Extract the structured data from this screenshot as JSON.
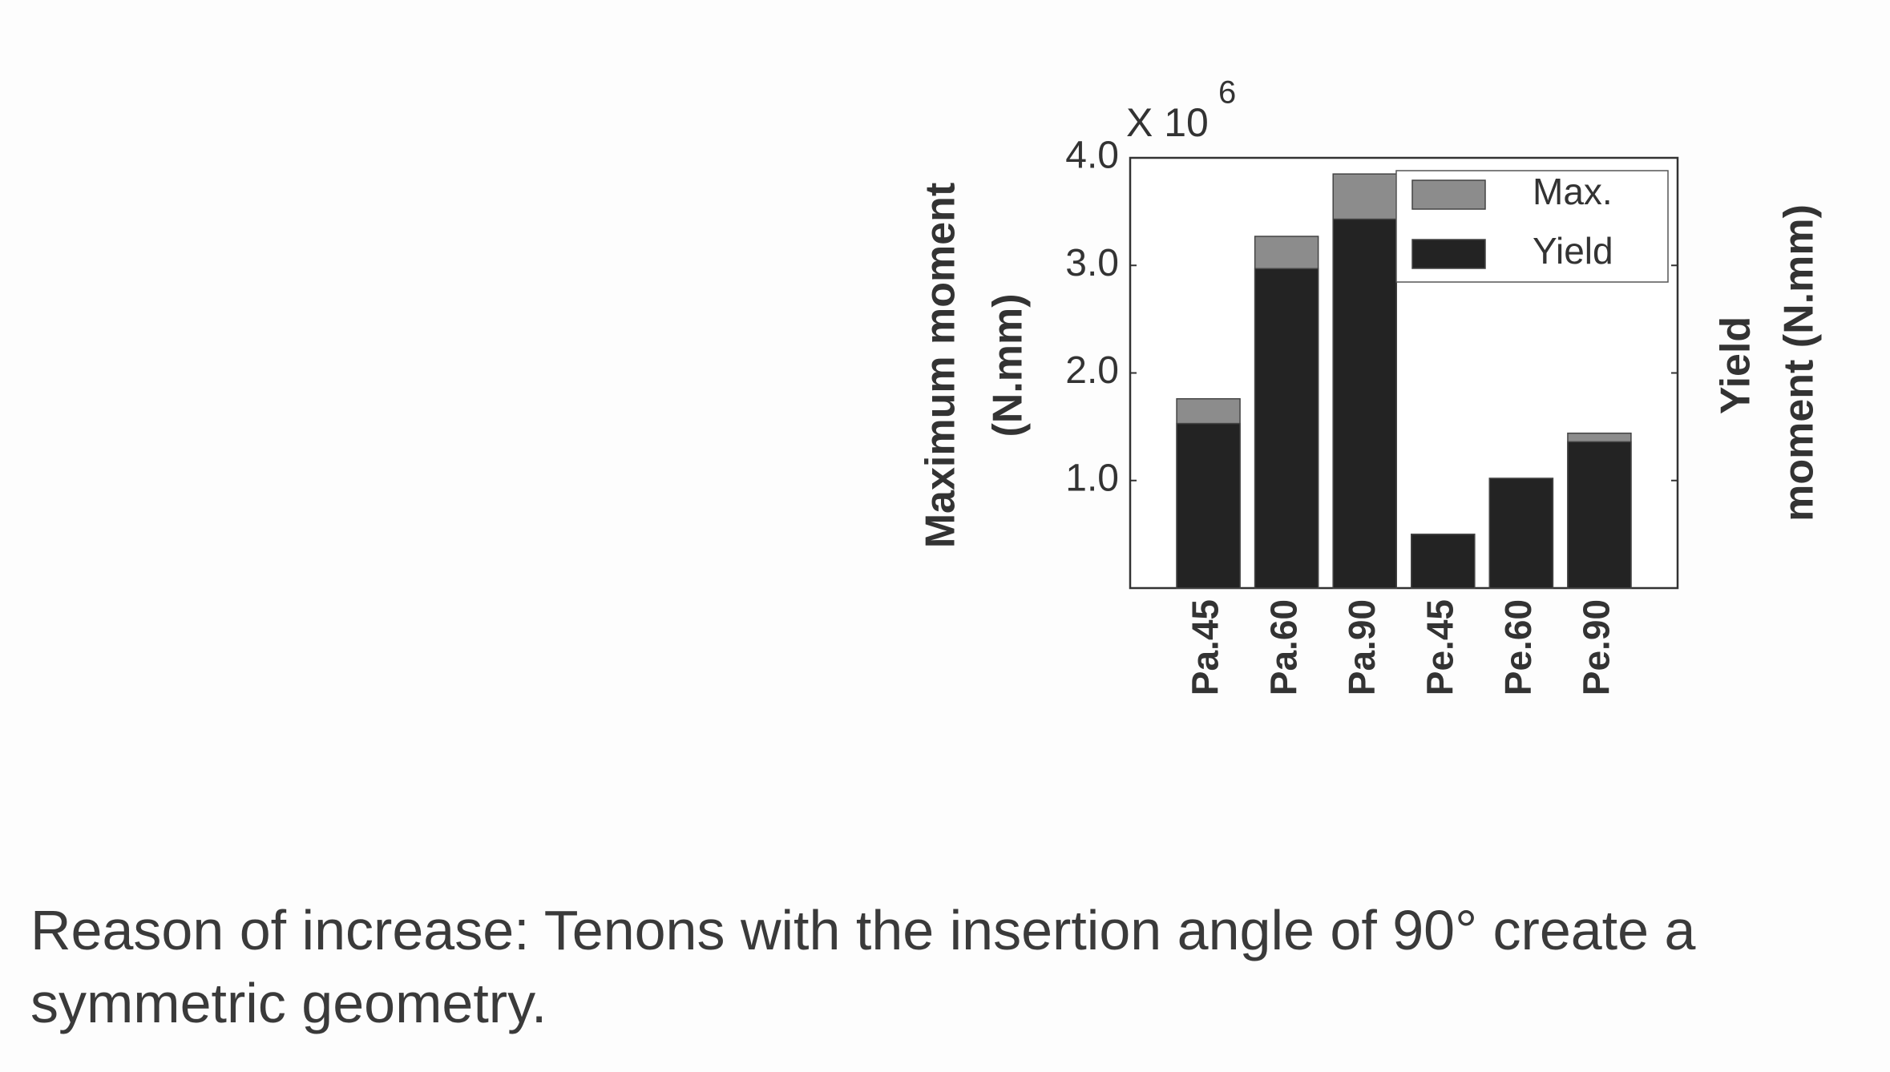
{
  "chart_data": {
    "type": "bar",
    "overlap": true,
    "categories": [
      "Pa.45",
      "Pa.60",
      "Pa.90",
      "Pe.45",
      "Pe.60",
      "Pe.90"
    ],
    "series": [
      {
        "name": "Max.",
        "color": "#8c8c8c",
        "values": [
          1760000,
          3270000,
          3850000,
          500000,
          1020000,
          1440000
        ]
      },
      {
        "name": "Yield",
        "color": "#232323",
        "values": [
          1530000,
          2970000,
          3430000,
          500000,
          1020000,
          1360000
        ]
      }
    ],
    "ylim": [
      0,
      4000000
    ],
    "yticks": [
      {
        "value": 1000000,
        "label": "1.0"
      },
      {
        "value": 2000000,
        "label": "2.0"
      },
      {
        "value": 3000000,
        "label": "3.0"
      },
      {
        "value": 4000000,
        "label": "4.0"
      }
    ],
    "multiplier": "X 10",
    "multiplier_exponent": "6",
    "ylabel": [
      "Maximum moment",
      "(N.mm)"
    ],
    "y2label": [
      "Yield",
      "moment (N.mm)"
    ],
    "grid": false,
    "legend": "upper right"
  },
  "caption": [
    "Reason of increase: Tenons with the insertion angle of 90° create a",
    "symmetric geometry."
  ]
}
